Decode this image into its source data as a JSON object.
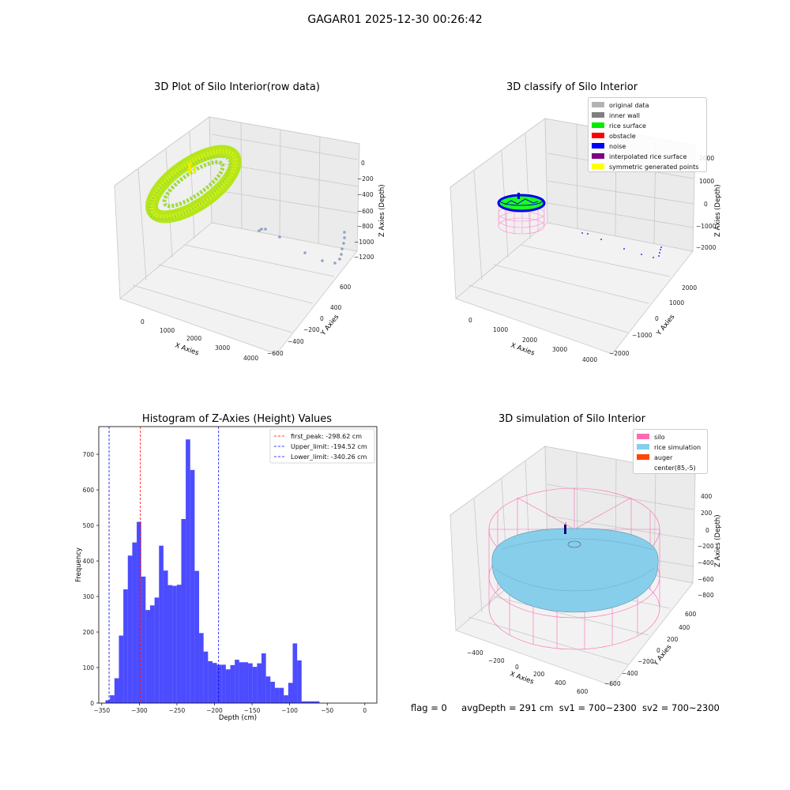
{
  "suptitle": "GAGAR01 2025-12-30 00:26:42",
  "panels": {
    "p1": {
      "title": "3D Plot of Silo Interior(row data)",
      "xlabel": "X Axies",
      "ylabel": "Y Axies",
      "zlabel": "Z Axies (Depth)",
      "xticks": [
        "0",
        "1000",
        "2000",
        "3000",
        "4000"
      ],
      "yticks": [
        "600",
        "400",
        "200",
        "0",
        "−200",
        "−400",
        "−600"
      ],
      "zticks": [
        "0",
        "−200",
        "−400",
        "−600",
        "−800",
        "−1000",
        "−1200"
      ]
    },
    "p2": {
      "title": "3D classify of Silo Interior",
      "xlabel": "X Axies",
      "ylabel": "Y Axies",
      "zlabel": "Z Axies (Depth)",
      "xticks": [
        "0",
        "1000",
        "2000",
        "3000",
        "4000"
      ],
      "yticks": [
        "2000",
        "1000",
        "0",
        "−1000",
        "−2000"
      ],
      "zticks": [
        "2000",
        "1000",
        "0",
        "−1000",
        "−2000"
      ],
      "legend": [
        {
          "label": "original data",
          "color": "#b3b3b3"
        },
        {
          "label": "inner wall",
          "color": "#808080"
        },
        {
          "label": "rice surface",
          "color": "#00ee00"
        },
        {
          "label": "obstacle",
          "color": "#ff0000"
        },
        {
          "label": "noise",
          "color": "#0000ff"
        },
        {
          "label": "interpolated rice surface",
          "color": "#800080"
        },
        {
          "label": "symmetric generated points",
          "color": "#ffff00"
        }
      ]
    },
    "p4": {
      "title": "3D simulation of Silo Interior",
      "xlabel": "X Axies",
      "ylabel": "Y Axies",
      "zlabel": "Z Axies (Depth)",
      "xticks": [
        "−400",
        "−200",
        "0",
        "200",
        "400",
        "600"
      ],
      "yticks": [
        "600",
        "400",
        "200",
        "0",
        "−200",
        "−400",
        "−600"
      ],
      "zticks": [
        "400",
        "200",
        "0",
        "−200",
        "−400",
        "−600",
        "−800"
      ],
      "legend": [
        {
          "label": "silo",
          "color": "#ff69b4"
        },
        {
          "label": "rice simulation",
          "color": "#87ceeb"
        },
        {
          "label": "auger",
          "color": "#ff4500"
        },
        {
          "label": "center(85,-5)",
          "color": ""
        }
      ]
    }
  },
  "chart_data": {
    "type": "bar",
    "title": "Histogram of Z-Axies (Height) Values",
    "xlabel": "Depth (cm)",
    "ylabel": "Frequency",
    "xlim": [
      -354,
      16
    ],
    "ylim": [
      0,
      778
    ],
    "xticks": [
      -350,
      -300,
      -250,
      -200,
      -150,
      -100,
      -50,
      0
    ],
    "yticks": [
      0,
      100,
      200,
      300,
      400,
      500,
      600,
      700
    ],
    "bar_color": "#0000ff",
    "bin_start": -345,
    "bin_width": 5.93,
    "values": [
      8,
      22,
      70,
      190,
      320,
      415,
      452,
      510,
      356,
      262,
      275,
      297,
      443,
      373,
      332,
      330,
      333,
      518,
      742,
      656,
      372,
      197,
      145,
      118,
      113,
      108,
      108,
      95,
      107,
      122,
      115,
      115,
      112,
      102,
      112,
      140,
      75,
      60,
      43,
      43,
      22,
      57,
      168,
      120,
      5,
      5,
      5,
      5
    ],
    "lines": [
      {
        "label": "first_peak: -298.62 cm",
        "x": -298.62,
        "color": "#ff0000"
      },
      {
        "label": "Upper_limit: -194.52 cm",
        "x": -194.52,
        "color": "#0000ff"
      },
      {
        "label": "Lower_limit: -340.26 cm",
        "x": -340.26,
        "color": "#0000ff"
      }
    ]
  },
  "footer": {
    "flag": "flag = 0",
    "avg": "avgDepth = 291 cm",
    "sv1": "sv1 = 700~2300",
    "sv2": "sv2 = 700~2300"
  }
}
